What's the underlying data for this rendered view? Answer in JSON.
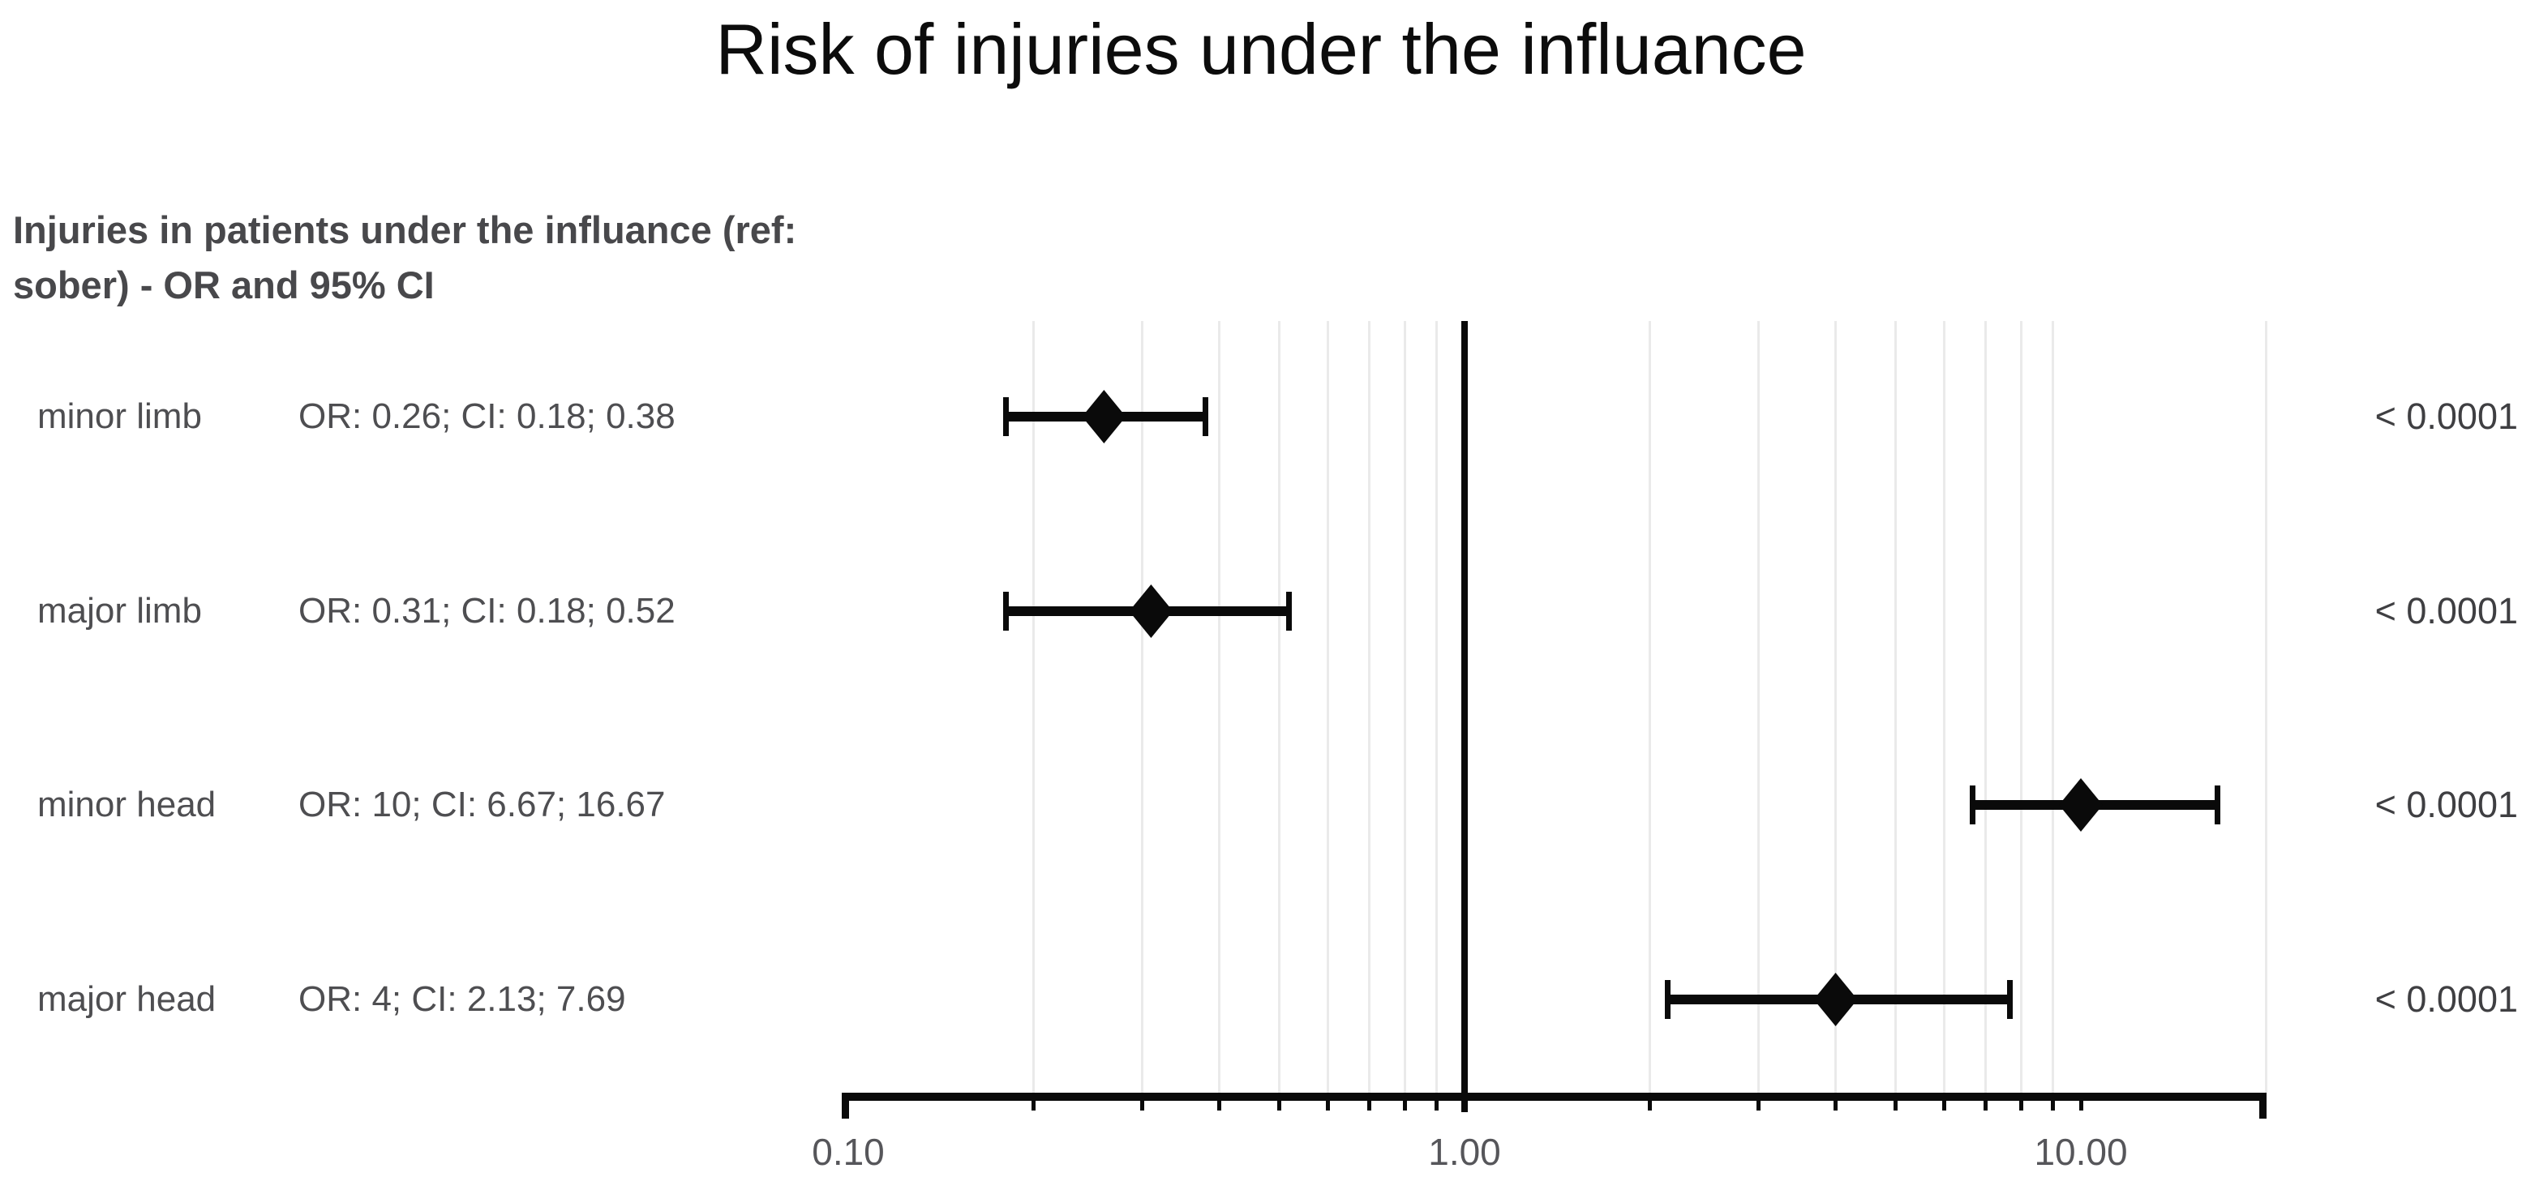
{
  "title": "Risk of injuries under the influance",
  "subtitle": {
    "line1": "Injuries in patients under the influance (ref:",
    "line2": "sober) - OR and 95% CI"
  },
  "colors": {
    "background": "#ffffff",
    "title_text": "#0c0c0c",
    "subtitle_text": "#48484b",
    "row_text": "#4e4e51",
    "p_value_text": "#3f3f42",
    "axis_label_text": "#56565a",
    "marker": "#0a0a0a",
    "reference_line": "#0a0a0a",
    "gridline": "#eaeaea"
  },
  "chart_data": {
    "type": "scatter",
    "subtype": "forest-plot",
    "title": "Risk of injuries under the influance",
    "xlabel": "",
    "ylabel": "",
    "x_axis": {
      "scale": "log10",
      "range": [
        0.1,
        20
      ],
      "labeled_ticks": [
        {
          "value": 0.1,
          "label": "0.10"
        },
        {
          "value": 1.0,
          "label": "1.00"
        },
        {
          "value": 10.0,
          "label": "10.00"
        }
      ],
      "minor_ticks": [
        0.1,
        0.2,
        0.3,
        0.4,
        0.5,
        0.6,
        0.7,
        0.8,
        0.9,
        1,
        2,
        3,
        4,
        5,
        6,
        7,
        8,
        9,
        10,
        20
      ],
      "gridlines": [
        0.2,
        0.3,
        0.4,
        0.5,
        0.6,
        0.7,
        0.8,
        0.9,
        2,
        3,
        4,
        5,
        6,
        7,
        8,
        9,
        20
      ],
      "reference_line": 1.0
    },
    "legend": null,
    "grid": "vertical-minor-only",
    "rows": [
      {
        "label": "minor limb",
        "annotation": "OR: 0.26; CI: 0.18; 0.38",
        "or": 0.26,
        "ci_low": 0.18,
        "ci_high": 0.38,
        "p_value": "< 0.0001"
      },
      {
        "label": "major limb",
        "annotation": "OR: 0.31; CI: 0.18; 0.52",
        "or": 0.31,
        "ci_low": 0.18,
        "ci_high": 0.52,
        "p_value": "< 0.0001"
      },
      {
        "label": "minor head",
        "annotation": "OR: 10; CI: 6.67; 16.67",
        "or": 10,
        "ci_low": 6.67,
        "ci_high": 16.67,
        "p_value": "< 0.0001"
      },
      {
        "label": "major head",
        "annotation": "OR: 4; CI: 2.13; 7.69",
        "or": 4,
        "ci_low": 2.13,
        "ci_high": 7.69,
        "p_value": "< 0.0001"
      }
    ]
  }
}
